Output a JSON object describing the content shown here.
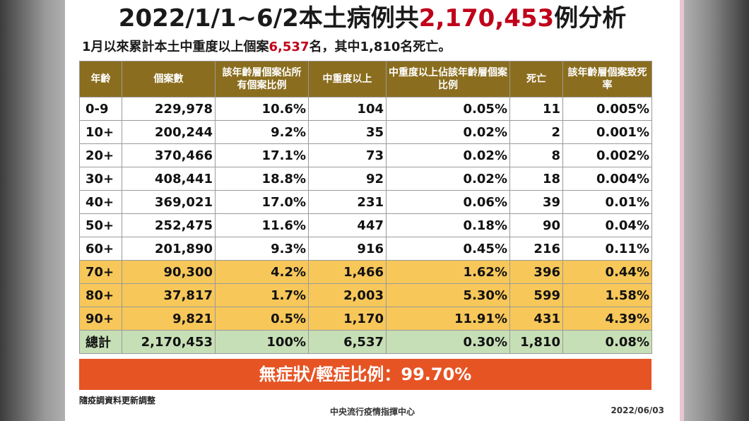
{
  "title": {
    "prefix": "2022/1/1~6/2本土病例共",
    "highlight": "2,170,453",
    "suffix": "例分析"
  },
  "subtitle": {
    "prefix": "1月以來累計本土中重度以上個案",
    "highlight": "6,537",
    "suffix": "名，其中1,810名死亡。"
  },
  "table": {
    "headers": [
      "年齡",
      "個案數",
      "該年齡層個案佔所有個案比例",
      "中重度以上",
      "中重度以上佔該年齡層個案比例",
      "死亡",
      "該年齡層個案致死率"
    ],
    "rows": [
      [
        "0-9",
        "229,978",
        "10.6%",
        "104",
        "0.05%",
        "11",
        "0.005%"
      ],
      [
        "10+",
        "200,244",
        "9.2%",
        "35",
        "0.02%",
        "2",
        "0.001%"
      ],
      [
        "20+",
        "370,466",
        "17.1%",
        "73",
        "0.02%",
        "8",
        "0.002%"
      ],
      [
        "30+",
        "408,441",
        "18.8%",
        "92",
        "0.02%",
        "18",
        "0.004%"
      ],
      [
        "40+",
        "369,021",
        "17.0%",
        "231",
        "0.06%",
        "39",
        "0.01%"
      ],
      [
        "50+",
        "252,475",
        "11.6%",
        "447",
        "0.18%",
        "90",
        "0.04%"
      ],
      [
        "60+",
        "201,890",
        "9.3%",
        "916",
        "0.45%",
        "216",
        "0.11%"
      ],
      [
        "70+",
        "90,300",
        "4.2%",
        "1,466",
        "1.62%",
        "396",
        "0.44%"
      ],
      [
        "80+",
        "37,817",
        "1.7%",
        "2,003",
        "5.30%",
        "599",
        "1.58%"
      ],
      [
        "90+",
        "9,821",
        "0.5%",
        "1,170",
        "11.91%",
        "431",
        "4.39%"
      ],
      [
        "總計",
        "2,170,453",
        "100%",
        "6,537",
        "0.30%",
        "1,810",
        "0.08%"
      ]
    ]
  },
  "banner": "無症狀/輕症比例：99.70%",
  "note": "隨疫調資料更新調整",
  "footer": {
    "agency": "中央流行疫情指揮中心",
    "date": "2022/06/03"
  },
  "colors": {
    "header": "#8a6d1e",
    "highlight_rows": "#f7c75a",
    "total_row": "#c7dfb6",
    "banner": "#e65424",
    "accent_red": "#c0001a"
  }
}
